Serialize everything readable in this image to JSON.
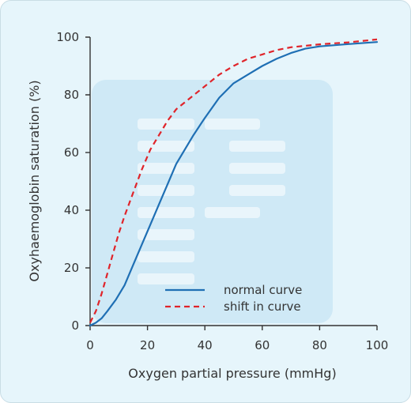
{
  "chart_data": {
    "type": "line",
    "title": "",
    "xlabel": "Oxygen partial pressure (mmHg)",
    "ylabel": "Oxyhaemoglobin saturation (%)",
    "xlim": [
      0,
      100
    ],
    "ylim": [
      0,
      100
    ],
    "x_ticks": [
      "0",
      "20",
      "40",
      "60",
      "80",
      "100"
    ],
    "y_ticks": [
      "0",
      "20",
      "40",
      "60",
      "80",
      "100"
    ],
    "grid": false,
    "legend_position": "bottom-center",
    "series": [
      {
        "name": "normal curve",
        "color": "#1f6fb4",
        "style": "solid",
        "points": [
          [
            0,
            0
          ],
          [
            2,
            1
          ],
          [
            4,
            2.5
          ],
          [
            6,
            5
          ],
          [
            9,
            9
          ],
          [
            12,
            14
          ],
          [
            15,
            21
          ],
          [
            18,
            28
          ],
          [
            21,
            35
          ],
          [
            24,
            42
          ],
          [
            27,
            49
          ],
          [
            30,
            56
          ],
          [
            33,
            61
          ],
          [
            36,
            66
          ],
          [
            40,
            72
          ],
          [
            45,
            79
          ],
          [
            50,
            84
          ],
          [
            55,
            87
          ],
          [
            60,
            90
          ],
          [
            65,
            92.5
          ],
          [
            70,
            94.5
          ],
          [
            75,
            96
          ],
          [
            80,
            96.8
          ],
          [
            90,
            97.6
          ],
          [
            100,
            98.3
          ]
        ]
      },
      {
        "name": "shift in curve",
        "color": "#e0242a",
        "style": "dashed",
        "points": [
          [
            0,
            1
          ],
          [
            2,
            5
          ],
          [
            4,
            11
          ],
          [
            6,
            18
          ],
          [
            8,
            25
          ],
          [
            10,
            32
          ],
          [
            12,
            38
          ],
          [
            15,
            46
          ],
          [
            18,
            54
          ],
          [
            21,
            61
          ],
          [
            24,
            66
          ],
          [
            27,
            71
          ],
          [
            30,
            75
          ],
          [
            35,
            79
          ],
          [
            40,
            83
          ],
          [
            45,
            87
          ],
          [
            50,
            90
          ],
          [
            55,
            92.5
          ],
          [
            60,
            94
          ],
          [
            65,
            95.5
          ],
          [
            70,
            96.5
          ],
          [
            80,
            97.5
          ],
          [
            90,
            98.2
          ],
          [
            100,
            99.2
          ]
        ]
      }
    ]
  },
  "colors": {
    "background": "#e6f5fb",
    "axis": "#333333",
    "decor": "#cfe9f6",
    "decor_bar": "#ffffff"
  }
}
